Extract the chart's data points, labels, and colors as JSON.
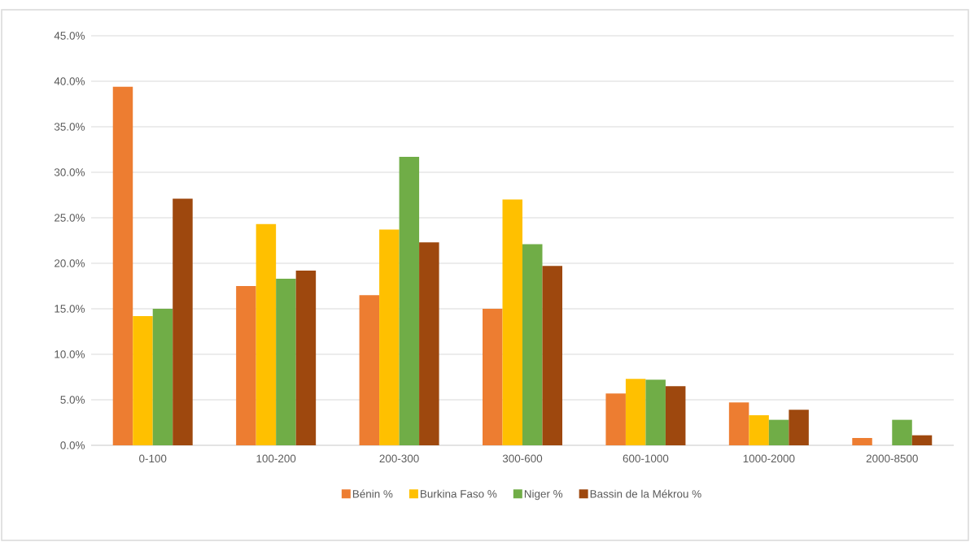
{
  "chart_data": {
    "type": "bar",
    "categories": [
      "0-100",
      "100-200",
      "200-300",
      "300-600",
      "600-1000",
      "1000-2000",
      "2000-8500"
    ],
    "series": [
      {
        "name": "Bénin %",
        "color": "#ed7d31",
        "values": [
          39.4,
          17.5,
          16.5,
          15.0,
          5.7,
          4.7,
          0.8
        ]
      },
      {
        "name": "Burkina Faso %",
        "color": "#ffc000",
        "values": [
          14.2,
          24.3,
          23.7,
          27.0,
          7.3,
          3.3,
          null
        ]
      },
      {
        "name": "Niger %",
        "color": "#70ad47",
        "values": [
          15.0,
          18.3,
          31.7,
          22.1,
          7.2,
          2.8,
          2.8
        ]
      },
      {
        "name": "Bassin de la Mékrou %",
        "color": "#9e480e",
        "values": [
          27.1,
          19.2,
          22.3,
          19.7,
          6.5,
          3.9,
          1.1
        ]
      }
    ],
    "ylim": [
      0,
      45
    ],
    "yticks": [
      {
        "value": 0,
        "label": "0.0%"
      },
      {
        "value": 5,
        "label": "5.0%"
      },
      {
        "value": 10,
        "label": "10.0%"
      },
      {
        "value": 15,
        "label": "15.0%"
      },
      {
        "value": 20,
        "label": "20.0%"
      },
      {
        "value": 25,
        "label": "25.0%"
      },
      {
        "value": 30,
        "label": "30.0%"
      },
      {
        "value": 35,
        "label": "35.0%"
      },
      {
        "value": 40,
        "label": "40.0%"
      },
      {
        "value": 45,
        "label": "45.0%"
      }
    ],
    "grid": "y",
    "legend": "bottom"
  }
}
